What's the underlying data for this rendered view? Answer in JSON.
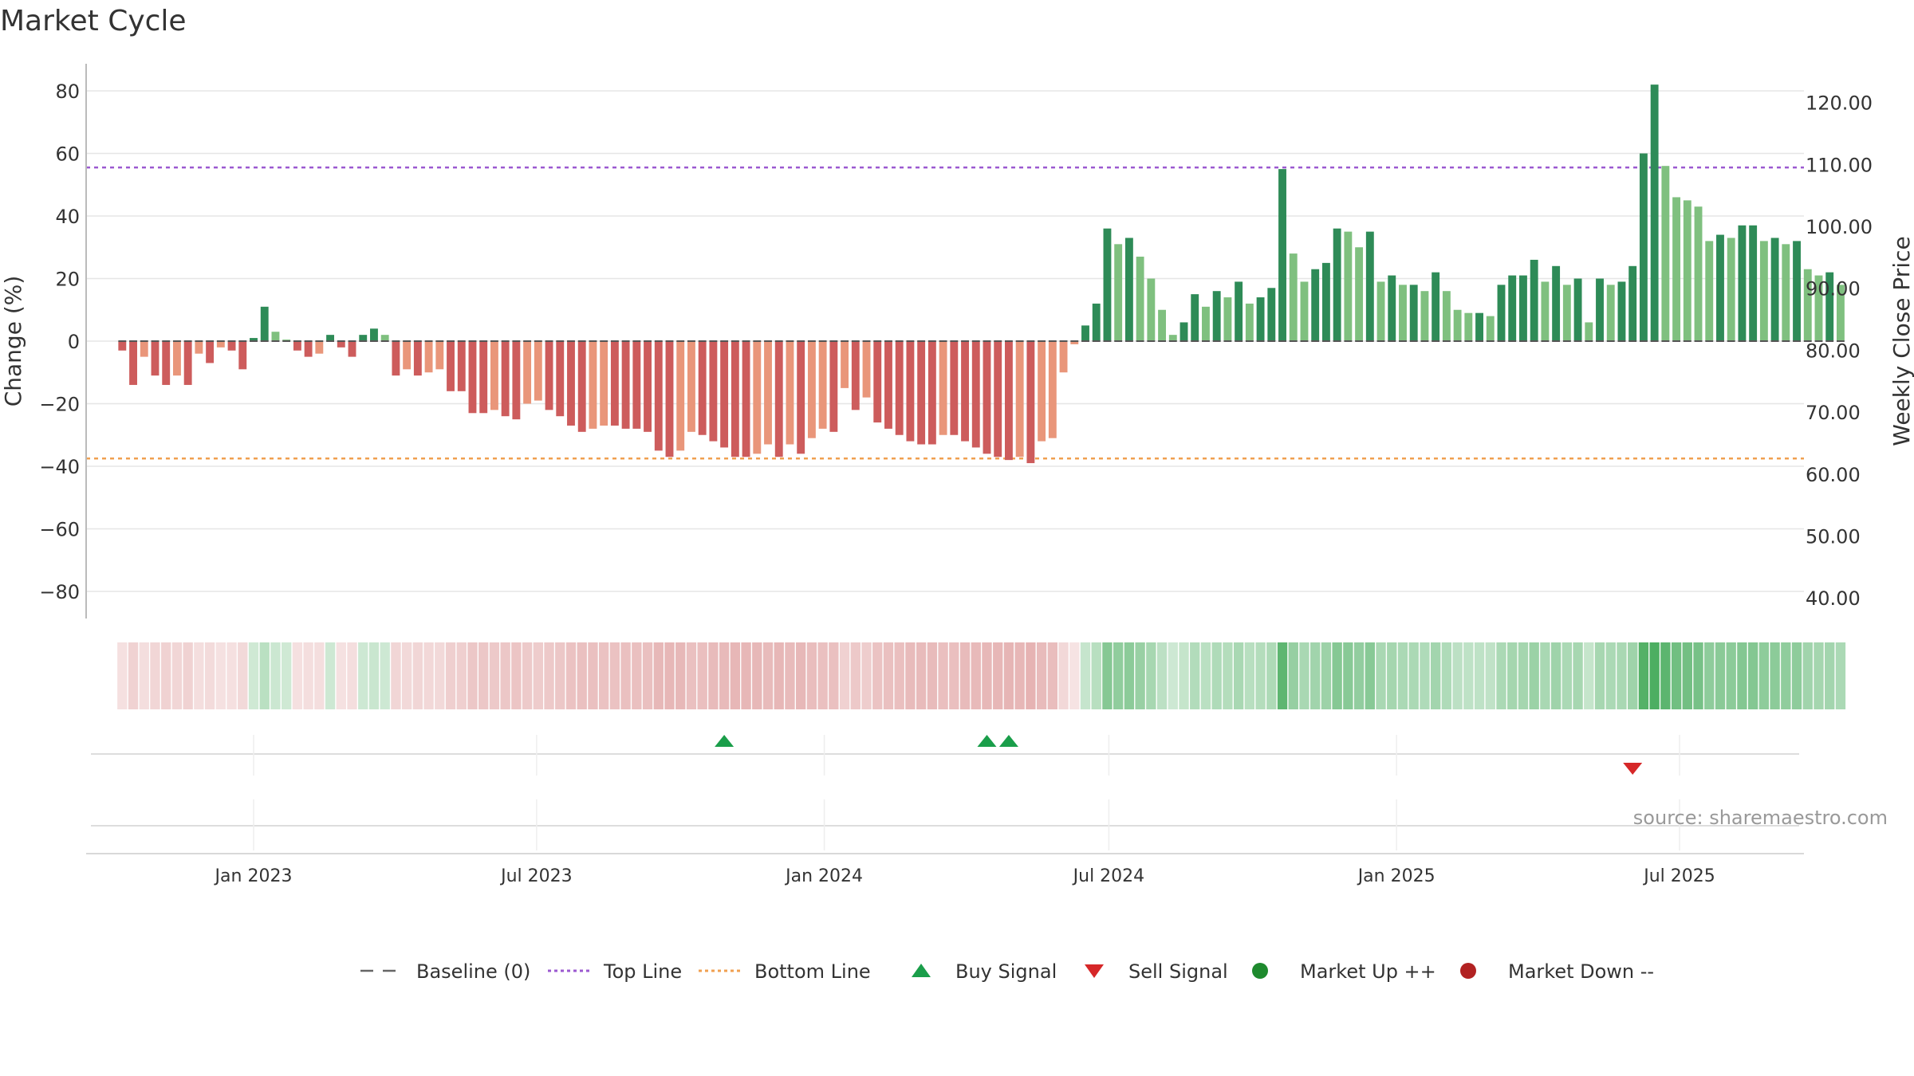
{
  "chart_data": {
    "type": "bar",
    "title": "Market Cycle",
    "ylabel": "Change (%)",
    "y2label": "Weekly Close Price",
    "ylim": [
      -90,
      90
    ],
    "y2lim": [
      35.5,
      126.5
    ],
    "yticks": [
      "80",
      "60",
      "40",
      "20",
      "0",
      "−20",
      "−40",
      "−60",
      "−80"
    ],
    "ytick_values": [
      80,
      60,
      40,
      20,
      0,
      -20,
      -40,
      -60,
      -80
    ],
    "y2ticks": [
      "120.00",
      "110.00",
      "100.00",
      "90.00",
      "80.00",
      "70.00",
      "60.00",
      "50.00",
      "40.00"
    ],
    "y2tick_values": [
      120,
      110,
      100,
      90,
      80,
      70,
      60,
      50,
      40
    ],
    "xticks": [
      "Jan 2023",
      "Jul 2023",
      "Jan 2024",
      "Jul 2024",
      "Jan 2025",
      "Jul 2025"
    ],
    "xtick_dates": [
      "2023-01-01",
      "2023-07-01",
      "2024-01-01",
      "2024-07-01",
      "2025-01-01",
      "2025-07-01"
    ],
    "first_week": "2022-10-09",
    "top_line": 55.5,
    "bottom_line": -37.5,
    "grid": true,
    "legend_position": "bottom-center",
    "values": [
      -3,
      -14,
      -5,
      -11,
      -14,
      -11,
      -14,
      -4,
      -7,
      -2,
      -3,
      -9,
      1,
      11,
      3,
      0.5,
      -3,
      -5,
      -4,
      2,
      -2,
      -5,
      2,
      4,
      2,
      -11,
      -9,
      -11,
      -10,
      -9,
      -16,
      -16,
      -23,
      -23,
      -22,
      -24,
      -25,
      -20,
      -19,
      -22,
      -24,
      -27,
      -29,
      -28,
      -27,
      -27,
      -28,
      -28,
      -29,
      -35,
      -37,
      -35,
      -29,
      -30,
      -32,
      -34,
      -37,
      -37,
      -36,
      -33,
      -37,
      -33,
      -36,
      -31,
      -28,
      -29,
      -15,
      -22,
      -18,
      -26,
      -28,
      -30,
      -32,
      -33,
      -33,
      -30,
      -30,
      -32,
      -34,
      -36,
      -37,
      -38,
      -37,
      -39,
      -32,
      -31,
      -10,
      -1,
      5,
      12,
      36,
      31,
      33,
      27,
      20,
      10,
      2,
      6,
      15,
      11,
      16,
      14,
      19,
      12,
      14,
      17,
      55,
      28,
      19,
      23,
      25,
      36,
      35,
      30,
      35,
      19,
      21,
      18,
      18,
      16,
      22,
      16,
      10,
      9,
      9,
      8,
      18,
      21,
      21,
      26,
      19,
      24,
      18,
      20,
      6,
      20,
      18,
      19,
      24,
      60,
      82,
      56,
      46,
      45,
      43,
      32,
      34,
      33,
      37,
      37,
      32,
      33,
      31,
      32,
      23,
      21,
      22,
      18
    ],
    "buy_signals": [
      "2023-10-29",
      "2024-04-14",
      "2024-04-28"
    ],
    "sell_signals": [
      "2025-06-01"
    ],
    "source": "source: sharemaestro.com",
    "legend": [
      {
        "label": "Baseline (0)",
        "marker": "dash-line",
        "color": "#666666"
      },
      {
        "label": "Top Line",
        "marker": "dotted-line",
        "color": "#9b59d0"
      },
      {
        "label": "Bottom Line",
        "marker": "dotted-line",
        "color": "#f0a050"
      },
      {
        "label": "Buy Signal",
        "marker": "triangle-up",
        "color": "#1a9e4a"
      },
      {
        "label": "Sell Signal",
        "marker": "triangle-down",
        "color": "#d62728"
      },
      {
        "label": "Market Up ++",
        "marker": "circle",
        "color": "#1e8a2e"
      },
      {
        "label": "Market Down --",
        "marker": "circle",
        "color": "#b22222"
      }
    ],
    "colors": {
      "up_strong": "#2e8b57",
      "up_weak": "#7fc07f",
      "down_strong": "#cd5c5c",
      "down_weak": "#e9967a",
      "top_line": "#9b59d0",
      "bottom_line": "#f0a050",
      "buy": "#1a9e4a",
      "sell": "#d62728",
      "grid": "#e6e6e6"
    }
  }
}
